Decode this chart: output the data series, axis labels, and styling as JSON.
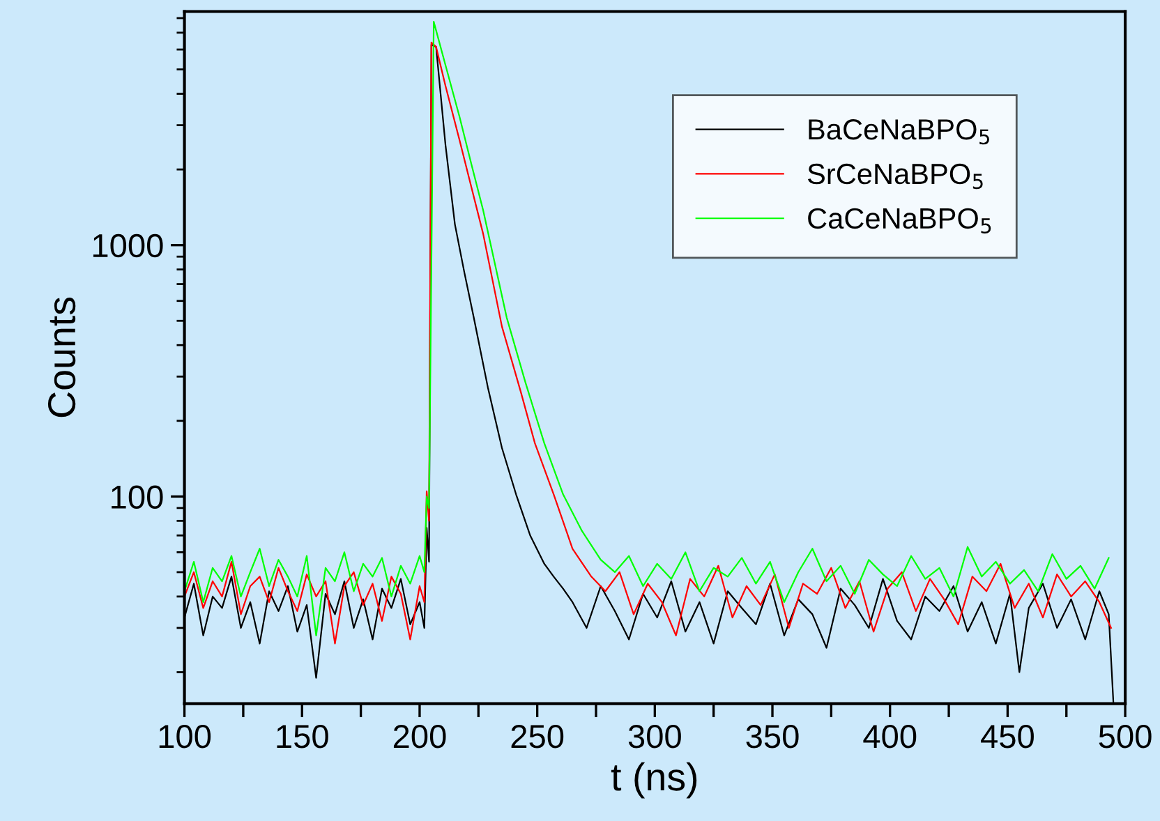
{
  "chart_data": {
    "type": "line",
    "xlabel": "t (ns)",
    "ylabel": "Counts",
    "log": "y",
    "legend": "top right",
    "grid": false,
    "xlim": [
      100,
      500
    ],
    "xticks": [
      100,
      {
        "value": 125,
        "label": null
      },
      150,
      {
        "value": 175,
        "label": null
      },
      200,
      {
        "value": 225,
        "label": null
      },
      250,
      {
        "value": 275,
        "label": null
      },
      300,
      {
        "value": 325,
        "label": null
      },
      350,
      {
        "value": 375,
        "label": null
      },
      400,
      {
        "value": 425,
        "label": null
      },
      450,
      {
        "value": 475,
        "label": null
      },
      500
    ],
    "ylim": [
      15,
      8500
    ],
    "yticks": [
      100,
      1000
    ],
    "series": [
      {
        "name": "BaCeNaBPO$_{5}$",
        "color": "#000000",
        "x": [
          100,
          104,
          108,
          112,
          116,
          120,
          124,
          128,
          132,
          136,
          140,
          144,
          148,
          152,
          156,
          160,
          164,
          168,
          172,
          176,
          180,
          184,
          188,
          192,
          196,
          200,
          202,
          203,
          204,
          205,
          207,
          211,
          215,
          219,
          223,
          229,
          235,
          241,
          247,
          253,
          257,
          261,
          265,
          271,
          277,
          283,
          289,
          295,
          301,
          307,
          313,
          319,
          325,
          331,
          337,
          343,
          349,
          355,
          361,
          367,
          373,
          379,
          385,
          391,
          397,
          403,
          409,
          415,
          421,
          427,
          433,
          439,
          445,
          451,
          455,
          459,
          465,
          471,
          477,
          483,
          489,
          493,
          495
        ],
        "values": [
          33,
          45,
          28,
          40,
          36,
          48,
          30,
          38,
          26,
          42,
          35,
          44,
          29,
          37,
          19,
          41,
          34,
          46,
          30,
          39,
          27,
          43,
          36,
          47,
          31,
          38,
          30,
          75,
          55,
          6270,
          6150,
          2500,
          1210,
          780,
          516,
          272,
          156,
          102,
          70,
          54,
          48,
          43,
          38,
          30,
          44,
          35,
          27,
          41,
          33,
          46,
          29,
          38,
          26,
          42,
          36,
          31,
          45,
          28,
          39,
          34,
          25,
          43,
          37,
          30,
          47,
          32,
          27,
          40,
          35,
          44,
          29,
          38,
          26,
          41,
          20,
          36,
          45,
          30,
          39,
          27,
          42,
          34,
          15
        ]
      },
      {
        "name": "SrCeNaBPO$_{5}$",
        "color": "#ff0000",
        "x": [
          100,
          104,
          108,
          112,
          116,
          120,
          124,
          128,
          132,
          136,
          140,
          144,
          148,
          152,
          156,
          160,
          164,
          168,
          172,
          176,
          180,
          184,
          188,
          192,
          196,
          200,
          202,
          203,
          204,
          205,
          207,
          211,
          217,
          222,
          227,
          235,
          243,
          249,
          257,
          265,
          273,
          279,
          285,
          291,
          297,
          303,
          309,
          315,
          321,
          327,
          333,
          339,
          345,
          351,
          357,
          363,
          369,
          375,
          381,
          387,
          393,
          399,
          405,
          411,
          417,
          423,
          429,
          435,
          441,
          447,
          453,
          459,
          465,
          471,
          477,
          483,
          489,
          494
        ],
        "values": [
          40,
          50,
          36,
          46,
          40,
          55,
          34,
          44,
          48,
          38,
          52,
          42,
          35,
          49,
          40,
          46,
          26,
          44,
          50,
          37,
          45,
          32,
          48,
          41,
          27,
          44,
          38,
          105,
          80,
          6400,
          6150,
          4300,
          2610,
          1700,
          1110,
          474,
          261,
          163,
          102,
          62,
          48,
          42,
          50,
          34,
          45,
          38,
          28,
          47,
          40,
          53,
          33,
          44,
          37,
          49,
          30,
          45,
          41,
          52,
          36,
          46,
          29,
          43,
          50,
          35,
          47,
          39,
          31,
          48,
          42,
          54,
          36,
          45,
          33,
          49,
          40,
          46,
          38,
          30
        ]
      },
      {
        "name": "CaCeNaBPO$_{5}$",
        "color": "#00ff00",
        "x": [
          100,
          104,
          108,
          112,
          116,
          120,
          124,
          128,
          132,
          136,
          140,
          144,
          148,
          152,
          156,
          160,
          164,
          168,
          172,
          176,
          180,
          184,
          188,
          192,
          196,
          200,
          202,
          203,
          204,
          206,
          211,
          217,
          222,
          227,
          237,
          245,
          253,
          261,
          269,
          277,
          283,
          289,
          295,
          301,
          307,
          313,
          319,
          325,
          331,
          337,
          343,
          349,
          355,
          361,
          367,
          373,
          379,
          385,
          391,
          397,
          403,
          409,
          415,
          421,
          427,
          433,
          439,
          445,
          451,
          457,
          463,
          469,
          475,
          481,
          487,
          493
        ],
        "values": [
          42,
          55,
          38,
          52,
          46,
          58,
          40,
          50,
          62,
          44,
          56,
          48,
          40,
          58,
          28,
          52,
          46,
          60,
          42,
          54,
          48,
          57,
          40,
          53,
          45,
          58,
          50,
          100,
          90,
          7740,
          5200,
          3230,
          2100,
          1377,
          516,
          284,
          163,
          102,
          73,
          56,
          50,
          58,
          44,
          54,
          47,
          60,
          42,
          52,
          48,
          57,
          45,
          55,
          38,
          50,
          62,
          46,
          53,
          41,
          56,
          49,
          44,
          58,
          47,
          52,
          40,
          63,
          48,
          55,
          45,
          51,
          42,
          59,
          47,
          53,
          43,
          57
        ]
      }
    ]
  }
}
